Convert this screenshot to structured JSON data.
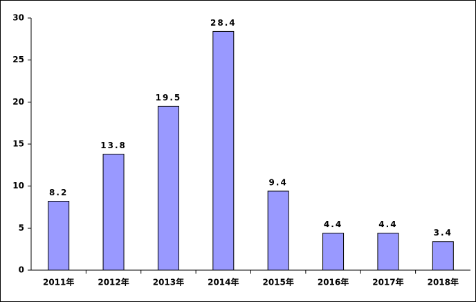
{
  "chart_data": {
    "type": "bar",
    "categories": [
      "2011年",
      "2012年",
      "2013年",
      "2014年",
      "2015年",
      "2016年",
      "2017年",
      "2018年"
    ],
    "values": [
      8.2,
      13.8,
      19.5,
      28.4,
      9.4,
      4.4,
      4.4,
      3.4
    ],
    "color": "#9999ff",
    "ylim": [
      0,
      30
    ],
    "yticks": [
      0,
      5,
      10,
      15,
      20,
      25,
      30
    ],
    "grid": false
  }
}
